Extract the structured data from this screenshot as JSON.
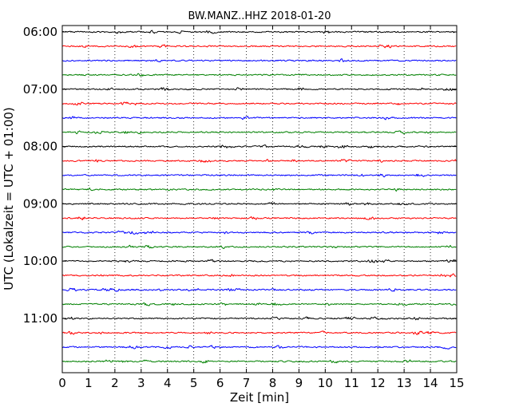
{
  "chart_data": {
    "type": "line",
    "title": "BW.MANZ..HHZ 2018-01-20",
    "xlabel": "Zeit  [min]",
    "ylabel": "UTC (Lokalzeit = UTC + 01:00)",
    "xlim": [
      0,
      15
    ],
    "x_ticks": [
      "0",
      "1",
      "2",
      "3",
      "4",
      "5",
      "6",
      "7",
      "8",
      "9",
      "10",
      "11",
      "12",
      "13",
      "14",
      "15"
    ],
    "y_ticks": [
      "06:00",
      "07:00",
      "08:00",
      "09:00",
      "10:00",
      "11:00"
    ],
    "grid": {
      "x": true,
      "y": false,
      "style": "dotted"
    },
    "trace_interval_min": 15,
    "start_time": "06:00",
    "trace_count": 24,
    "trace_colors": [
      "#000000",
      "#ff0000",
      "#0000ff",
      "#008000"
    ]
  }
}
